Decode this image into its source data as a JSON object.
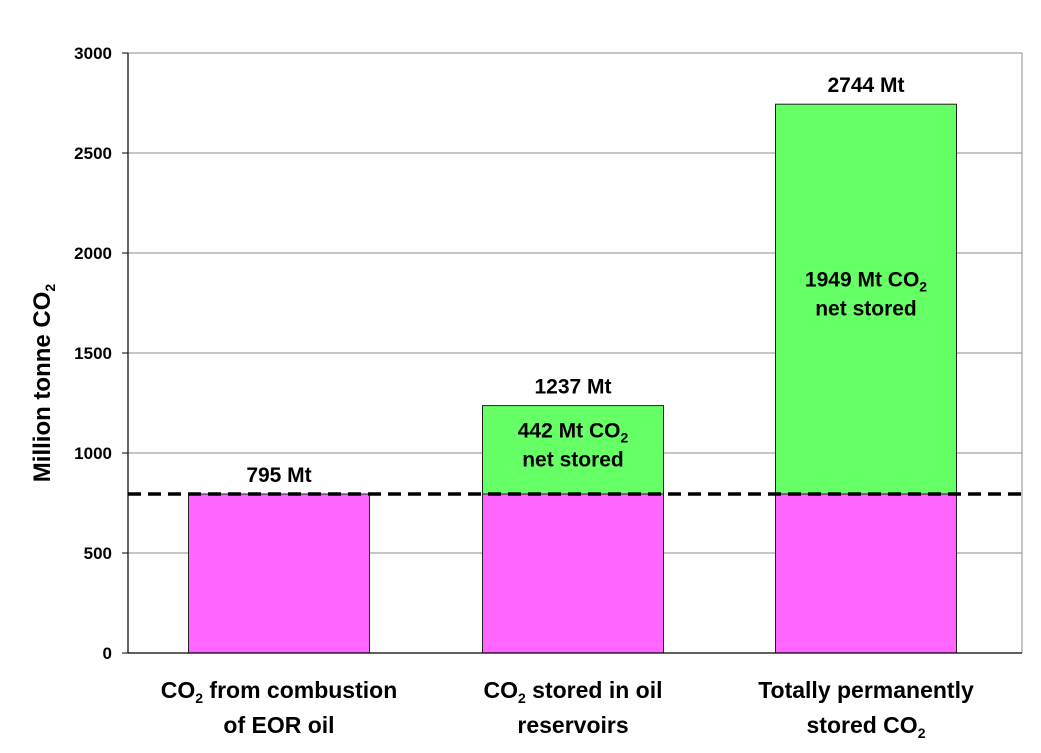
{
  "chart_data": {
    "type": "bar",
    "stacked": true,
    "ylabel": "Million tonne CO2",
    "ylim": [
      0,
      3000
    ],
    "yticks": [
      0,
      500,
      1000,
      1500,
      2000,
      2500,
      3000
    ],
    "grid": true,
    "categories": [
      "CO2 from combustion of EOR oil",
      "CO2 stored in oil reservoirs",
      "Totally permanently stored CO2"
    ],
    "category_lines": [
      [
        [
          [
            "CO",
            ""
          ],
          [
            "2",
            "sub"
          ],
          [
            " from combustion",
            ""
          ]
        ],
        [
          [
            "of EOR oil",
            ""
          ]
        ]
      ],
      [
        [
          [
            "CO",
            ""
          ],
          [
            "2",
            "sub"
          ],
          [
            " stored in oil",
            ""
          ]
        ],
        [
          [
            "reservoirs",
            ""
          ]
        ]
      ],
      [
        [
          [
            "Totally permanently",
            ""
          ]
        ],
        [
          [
            "stored CO",
            ""
          ],
          [
            "2",
            "sub"
          ]
        ]
      ]
    ],
    "series": [
      {
        "color": "#ff66ff",
        "values": [
          795,
          795,
          795
        ]
      },
      {
        "color": "#66ff66",
        "values": [
          0,
          442,
          1949
        ]
      }
    ],
    "totals": [
      795,
      1237,
      2744
    ],
    "total_labels": [
      "795 Mt",
      "1237 Mt",
      "2744 Mt"
    ],
    "segment_labels": [
      null,
      [
        [
          [
            "442 Mt CO",
            ""
          ],
          [
            "2",
            "sub"
          ]
        ],
        [
          [
            "net stored",
            ""
          ]
        ]
      ],
      [
        [
          [
            "1949 Mt CO",
            ""
          ],
          [
            "2",
            "sub"
          ]
        ],
        [
          [
            "net stored",
            ""
          ]
        ]
      ]
    ],
    "reference_line": {
      "value": 795,
      "style": "dashed"
    },
    "ylabel_parts": [
      [
        "Million tonne CO",
        ""
      ],
      [
        "2",
        "sub"
      ]
    ]
  }
}
